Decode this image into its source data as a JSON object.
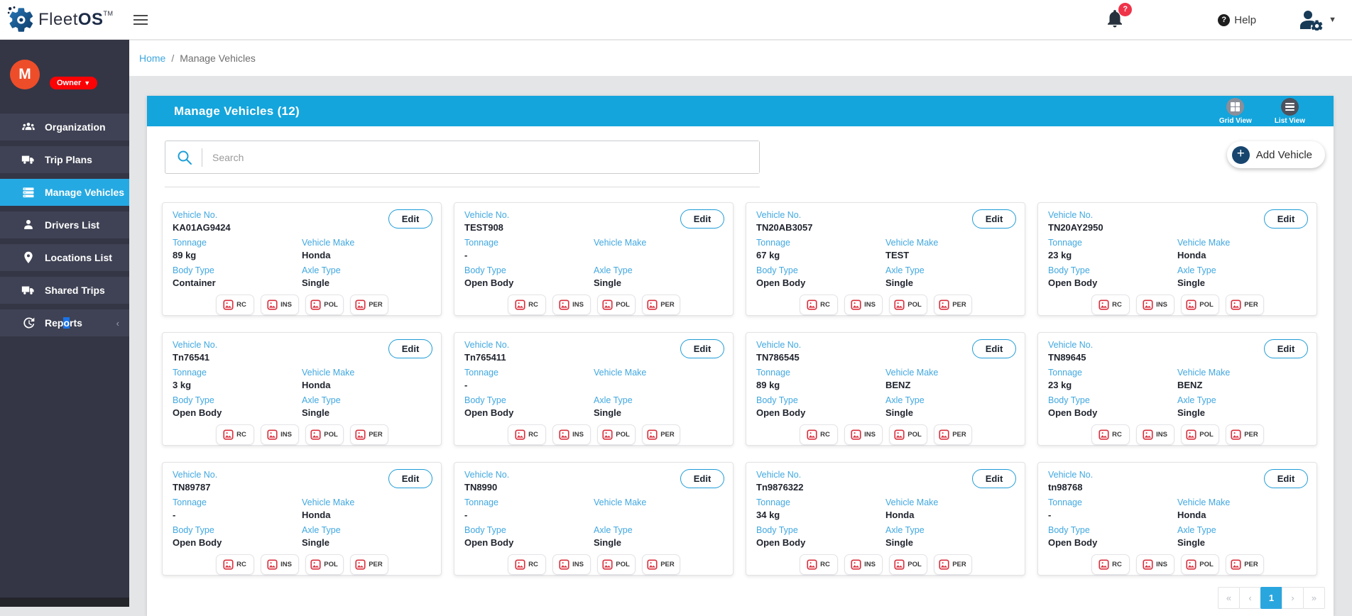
{
  "header": {
    "brand": {
      "name_light": "Fleet",
      "name_bold": "OS",
      "tm": "TM"
    },
    "notification_badge": "?",
    "help_label": "Help"
  },
  "breadcrumb": {
    "home": "Home",
    "separator": "/",
    "current": "Manage Vehicles"
  },
  "sidebar": {
    "avatar_initial": "M",
    "role_badge": "Owner",
    "role_caret": "▼",
    "items": [
      {
        "label": "Organization",
        "icon": "people-icon",
        "active": false
      },
      {
        "label": "Trip Plans",
        "icon": "truck-icon",
        "active": false
      },
      {
        "label": "Manage Vehicles",
        "icon": "list-icon",
        "active": true
      },
      {
        "label": "Drivers List",
        "icon": "person-icon",
        "active": false
      },
      {
        "label": "Locations List",
        "icon": "pin-icon",
        "active": false
      },
      {
        "label": "Shared Trips",
        "icon": "truck-icon",
        "active": false
      },
      {
        "label": "Reports",
        "icon": "history-icon",
        "active": false,
        "selection": {
          "pre": "Rep",
          "selected": "o",
          "post": "rts"
        },
        "collapse_chevron": "‹"
      }
    ]
  },
  "panel": {
    "title": "Manage Vehicles (12)",
    "views": [
      {
        "label": "Grid View",
        "icon": "grid-icon"
      },
      {
        "label": "List View",
        "icon": "list-lines-icon"
      }
    ],
    "search_placeholder": "Search",
    "add_vehicle_label": "Add Vehicle",
    "add_plus": "+"
  },
  "cards": {
    "labels": {
      "vehicle_no": "Vehicle No.",
      "tonnage": "Tonnage",
      "vehicle_make": "Vehicle Make",
      "body_type": "Body Type",
      "axle_type": "Axle Type"
    },
    "edit_label": "Edit",
    "doc_badges": [
      "RC",
      "INS",
      "POL",
      "PER"
    ],
    "vehicles": [
      {
        "vehicle_no": "KA01AG9424",
        "tonnage": "89 kg",
        "vehicle_make": "Honda",
        "body_type": "Container",
        "axle_type": "Single"
      },
      {
        "vehicle_no": "TEST908",
        "tonnage": "-",
        "vehicle_make": "",
        "body_type": "Open Body",
        "axle_type": "Single"
      },
      {
        "vehicle_no": "TN20AB3057",
        "tonnage": "67 kg",
        "vehicle_make": "TEST",
        "body_type": "Open Body",
        "axle_type": "Single"
      },
      {
        "vehicle_no": "TN20AY2950",
        "tonnage": "23 kg",
        "vehicle_make": "Honda",
        "body_type": "Open Body",
        "axle_type": "Single"
      },
      {
        "vehicle_no": "Tn76541",
        "tonnage": "3 kg",
        "vehicle_make": "Honda",
        "body_type": "Open Body",
        "axle_type": "Single"
      },
      {
        "vehicle_no": "Tn765411",
        "tonnage": "-",
        "vehicle_make": "",
        "body_type": "Open Body",
        "axle_type": "Single"
      },
      {
        "vehicle_no": "TN786545",
        "tonnage": "89 kg",
        "vehicle_make": "BENZ",
        "body_type": "Open Body",
        "axle_type": "Single"
      },
      {
        "vehicle_no": "TN89645",
        "tonnage": "23 kg",
        "vehicle_make": "BENZ",
        "body_type": "Open Body",
        "axle_type": "Single"
      },
      {
        "vehicle_no": "TN89787",
        "tonnage": "-",
        "vehicle_make": "Honda",
        "body_type": "Open Body",
        "axle_type": "Single"
      },
      {
        "vehicle_no": "TN8990",
        "tonnage": "-",
        "vehicle_make": "",
        "body_type": "Open Body",
        "axle_type": "Single"
      },
      {
        "vehicle_no": "Tn9876322",
        "tonnage": "34 kg",
        "vehicle_make": "Honda",
        "body_type": "Open Body",
        "axle_type": "Single"
      },
      {
        "vehicle_no": "tn98768",
        "tonnage": "-",
        "vehicle_make": "Honda",
        "body_type": "Open Body",
        "axle_type": "Single"
      }
    ]
  },
  "pagination": {
    "buttons": [
      {
        "glyph": "«",
        "name": "first-page",
        "active": false
      },
      {
        "glyph": "‹",
        "name": "prev-page",
        "active": false
      },
      {
        "glyph": "1",
        "name": "page-1",
        "active": true
      },
      {
        "glyph": "›",
        "name": "next-page",
        "active": false
      },
      {
        "glyph": "»",
        "name": "last-page",
        "active": false
      }
    ]
  },
  "colors": {
    "accent_blue": "#14a5dc",
    "label_blue": "#41a8e0",
    "sidebar_bg": "#343645",
    "active_item": "#25a9e2",
    "badge_red": "#fb0205",
    "avatar_orange": "#ee4d2a",
    "doc_icon_red": "#d9303e",
    "navy_icon": "#173a57"
  }
}
